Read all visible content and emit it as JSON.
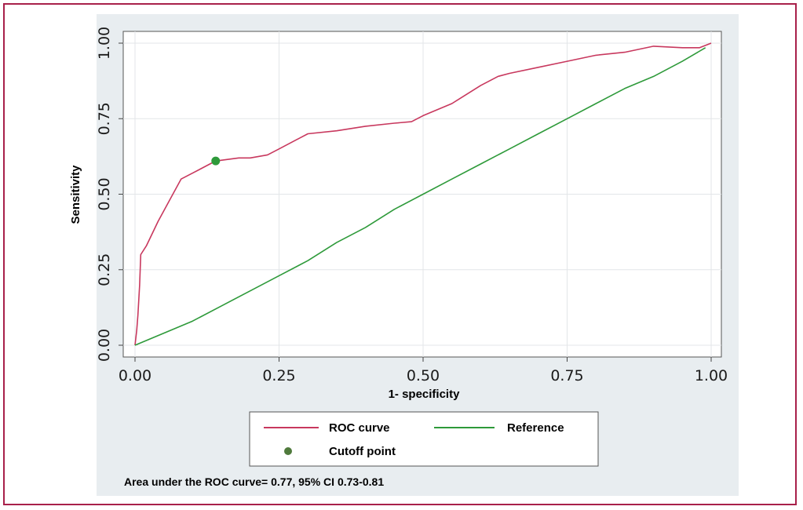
{
  "chart_data": {
    "type": "line",
    "xlabel": "1- specificity",
    "ylabel": "Sensitivity",
    "xlim": [
      0,
      1
    ],
    "ylim": [
      0,
      1
    ],
    "xticks": [
      "0.00",
      "0.25",
      "0.50",
      "0.75",
      "1.00"
    ],
    "yticks": [
      "0.00",
      "0.25",
      "0.50",
      "0.75",
      "1.00"
    ],
    "grid": true,
    "legend_position": "bottom",
    "series": [
      {
        "name": "ROC curve",
        "color": "#c8385e",
        "x": [
          0,
          0.003,
          0.005,
          0.008,
          0.01,
          0.02,
          0.04,
          0.06,
          0.08,
          0.1,
          0.13,
          0.14,
          0.18,
          0.2,
          0.23,
          0.25,
          0.28,
          0.3,
          0.35,
          0.4,
          0.45,
          0.48,
          0.5,
          0.55,
          0.6,
          0.63,
          0.65,
          0.7,
          0.75,
          0.8,
          0.85,
          0.9,
          0.95,
          0.98,
          1.0
        ],
        "y": [
          0,
          0.05,
          0.1,
          0.2,
          0.3,
          0.33,
          0.41,
          0.48,
          0.55,
          0.57,
          0.6,
          0.61,
          0.62,
          0.62,
          0.63,
          0.65,
          0.68,
          0.7,
          0.71,
          0.725,
          0.735,
          0.74,
          0.76,
          0.8,
          0.86,
          0.89,
          0.9,
          0.92,
          0.94,
          0.96,
          0.97,
          0.99,
          0.985,
          0.985,
          1.0
        ]
      },
      {
        "name": "Reference",
        "color": "#2e9a3a",
        "x": [
          0,
          0.05,
          0.1,
          0.15,
          0.2,
          0.25,
          0.3,
          0.35,
          0.4,
          0.45,
          0.5,
          0.55,
          0.6,
          0.65,
          0.7,
          0.75,
          0.8,
          0.85,
          0.9,
          0.95,
          0.99
        ],
        "y": [
          0,
          0.04,
          0.08,
          0.13,
          0.18,
          0.23,
          0.28,
          0.34,
          0.39,
          0.45,
          0.5,
          0.55,
          0.6,
          0.65,
          0.7,
          0.75,
          0.8,
          0.85,
          0.89,
          0.94,
          0.985
        ]
      }
    ],
    "points": [
      {
        "name": "Cutoff point",
        "x": 0.14,
        "y": 0.61,
        "color": "#2e9a3a"
      }
    ]
  },
  "legend": {
    "roc": "ROC curve",
    "reference": "Reference",
    "cutoff": "Cutoff point"
  },
  "footnote": "Area under the ROC curve= 0.77, 95% CI 0.73-0.81"
}
